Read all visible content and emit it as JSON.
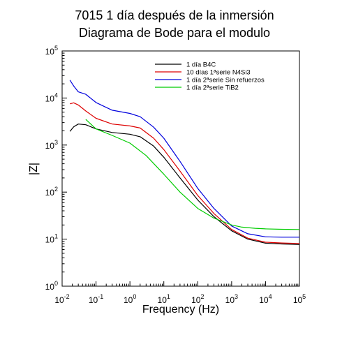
{
  "chart_data": {
    "type": "line",
    "title": "7015 1 día después de la inmersión",
    "subtitle": "Diagrama de Bode para el modulo",
    "xlabel": "Frequency (Hz)",
    "ylabel": "|Z|",
    "xscale": "log",
    "yscale": "log",
    "xlim": [
      0.01,
      100000
    ],
    "ylim": [
      1,
      100000
    ],
    "x_ticks": [
      {
        "base": "10",
        "exp": "-2"
      },
      {
        "base": "10",
        "exp": "-1"
      },
      {
        "base": "10",
        "exp": "0"
      },
      {
        "base": "10",
        "exp": "1"
      },
      {
        "base": "10",
        "exp": "2"
      },
      {
        "base": "10",
        "exp": "3"
      },
      {
        "base": "10",
        "exp": "4"
      },
      {
        "base": "10",
        "exp": "5"
      }
    ],
    "y_ticks": [
      {
        "base": "10",
        "exp": "0"
      },
      {
        "base": "10",
        "exp": "1"
      },
      {
        "base": "10",
        "exp": "2"
      },
      {
        "base": "10",
        "exp": "3"
      },
      {
        "base": "10",
        "exp": "4"
      },
      {
        "base": "10",
        "exp": "5"
      }
    ],
    "grid": false,
    "legend_position": "top-right",
    "series": [
      {
        "name": "1 día B4C",
        "color": "#000000",
        "x": [
          0.017,
          0.022,
          0.03,
          0.05,
          0.1,
          0.3,
          1,
          2,
          5,
          10,
          30,
          100,
          300,
          1000,
          3000,
          10000,
          30000,
          100000
        ],
        "y": [
          1950,
          2450,
          2800,
          2700,
          2200,
          1850,
          1700,
          1500,
          950,
          550,
          200,
          68,
          30,
          15,
          10,
          8.2,
          7.9,
          7.7
        ]
      },
      {
        "name": "10 días 1ªserie N4Si3",
        "color": "#dd0000",
        "x": [
          0.017,
          0.022,
          0.03,
          0.05,
          0.1,
          0.3,
          1,
          2,
          5,
          10,
          30,
          100,
          300,
          1000,
          3000,
          10000,
          30000,
          100000
        ],
        "y": [
          7500,
          7900,
          7100,
          5300,
          3700,
          2800,
          2550,
          2300,
          1400,
          800,
          280,
          85,
          35,
          16,
          10.5,
          8.6,
          8.3,
          8.1
        ]
      },
      {
        "name": "1 día 2ªserie Sin refuerzos",
        "color": "#0000dd",
        "x": [
          0.017,
          0.022,
          0.03,
          0.05,
          0.1,
          0.3,
          1,
          2,
          5,
          10,
          30,
          100,
          300,
          1000,
          3000,
          10000,
          30000,
          100000
        ],
        "y": [
          24000,
          18000,
          13500,
          12000,
          8000,
          5500,
          4700,
          4000,
          2400,
          1400,
          450,
          120,
          45,
          19,
          13,
          11.2,
          11,
          11
        ]
      },
      {
        "name": "1 día 2ªserie TiB2",
        "color": "#00cc00",
        "x": [
          0.05,
          0.1,
          0.3,
          1,
          3,
          10,
          30,
          100,
          300,
          1000,
          2000,
          5000,
          10000,
          30000,
          100000
        ],
        "y": [
          3500,
          2200,
          1600,
          1100,
          600,
          240,
          100,
          45,
          28,
          20,
          18,
          17,
          16.5,
          16.2,
          16
        ]
      }
    ]
  }
}
